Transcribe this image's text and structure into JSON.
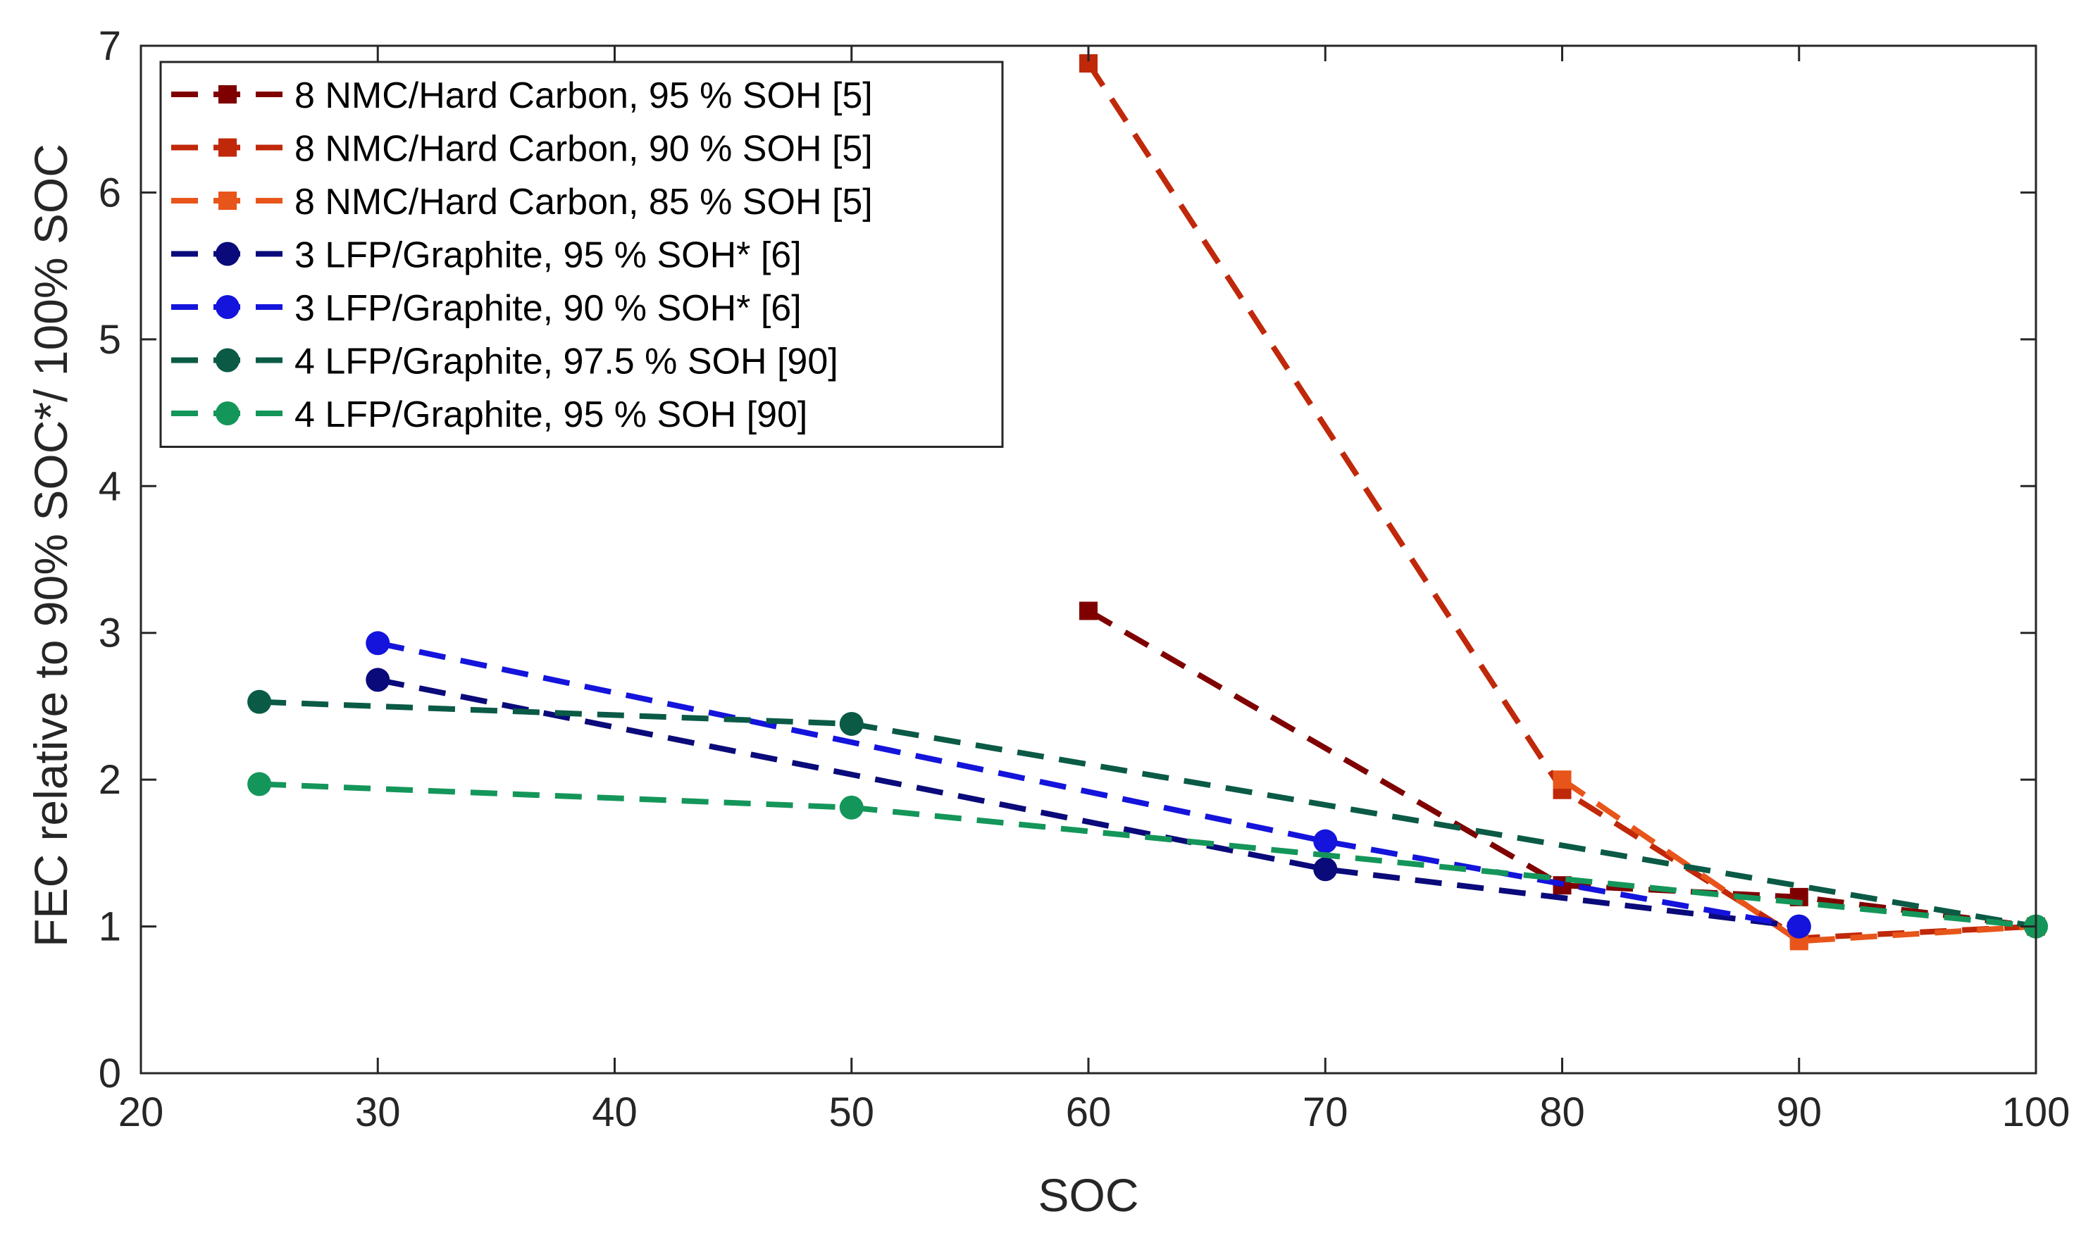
{
  "chart_data": {
    "type": "line",
    "title": "",
    "xlabel": "SOC",
    "ylabel": "FEC relative to 90% SOC*/ 100% SOC",
    "xlim": [
      20,
      100
    ],
    "ylim": [
      0,
      7
    ],
    "xticks": [
      20,
      30,
      40,
      50,
      60,
      70,
      80,
      90,
      100
    ],
    "yticks": [
      0,
      1,
      2,
      3,
      4,
      5,
      6,
      7
    ],
    "grid": false,
    "legend_position": "top-left",
    "line_style": "dashed",
    "series": [
      {
        "name": "8 NMC/Hard Carbon, 95 % SOH [5]",
        "color": "#7f0000",
        "marker": "square",
        "x": [
          60,
          80,
          90,
          100
        ],
        "y": [
          3.15,
          1.28,
          1.2,
          1.0
        ]
      },
      {
        "name": "8 NMC/Hard Carbon, 90 % SOH [5]",
        "color": "#c0280a",
        "marker": "square",
        "x": [
          60,
          80,
          90,
          100
        ],
        "y": [
          6.88,
          1.93,
          0.92,
          1.0
        ]
      },
      {
        "name": "8 NMC/Hard Carbon, 85 % SOH [5]",
        "color": "#e8551a",
        "marker": "square",
        "x": [
          80,
          90,
          100
        ],
        "y": [
          2.0,
          0.9,
          1.0
        ]
      },
      {
        "name": "3 LFP/Graphite, 95 % SOH* [6]",
        "color": "#0a0a7a",
        "marker": "circle",
        "x": [
          30,
          70,
          90
        ],
        "y": [
          2.68,
          1.39,
          1.0
        ]
      },
      {
        "name": "3 LFP/Graphite, 90 % SOH* [6]",
        "color": "#1414dc",
        "marker": "circle",
        "x": [
          30,
          70,
          90
        ],
        "y": [
          2.93,
          1.58,
          1.0
        ]
      },
      {
        "name": "4 LFP/Graphite, 97.5 % SOH [90]",
        "color": "#0a5a46",
        "marker": "circle",
        "x": [
          25,
          50,
          100
        ],
        "y": [
          2.53,
          2.38,
          1.0
        ]
      },
      {
        "name": "4 LFP/Graphite, 95 % SOH [90]",
        "color": "#14965a",
        "marker": "circle",
        "x": [
          25,
          50,
          100
        ],
        "y": [
          1.97,
          1.81,
          1.0
        ]
      }
    ]
  }
}
